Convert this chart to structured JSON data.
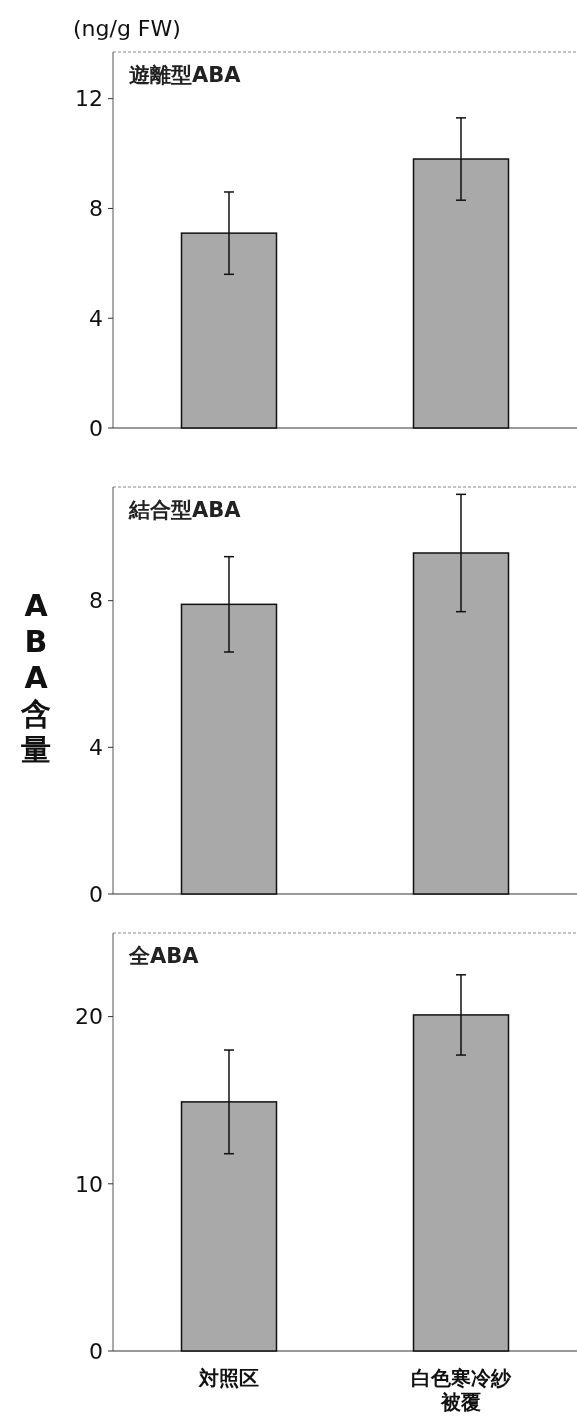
{
  "chart_data": [
    {
      "type": "bar",
      "title": "遊離型ABA",
      "ylabel": "(ng/g FW)",
      "categories": [
        null,
        null
      ],
      "values": [
        7.1,
        9.8
      ],
      "errors": [
        1.5,
        1.5
      ],
      "color": "#a9a9a9",
      "ylim": [
        0,
        13.7
      ],
      "yticks": [
        0,
        4,
        8,
        12
      ]
    },
    {
      "type": "bar",
      "title": "結合型ABA",
      "ylabel": "ABA含量",
      "categories": [
        null,
        null
      ],
      "values": [
        7.9,
        9.3
      ],
      "errors": [
        1.3,
        1.6
      ],
      "color": "#a9a9a9",
      "ylim": [
        0,
        11.1
      ],
      "yticks": [
        0,
        4,
        8
      ]
    },
    {
      "type": "bar",
      "title": "全ABA",
      "categories": [
        "対照区",
        "白色寒冷紗被覆"
      ],
      "values": [
        14.9,
        20.1
      ],
      "errors": [
        3.1,
        2.4
      ],
      "color": "#a9a9a9",
      "ylim": [
        0,
        25
      ],
      "yticks": [
        0,
        10,
        20
      ]
    }
  ]
}
